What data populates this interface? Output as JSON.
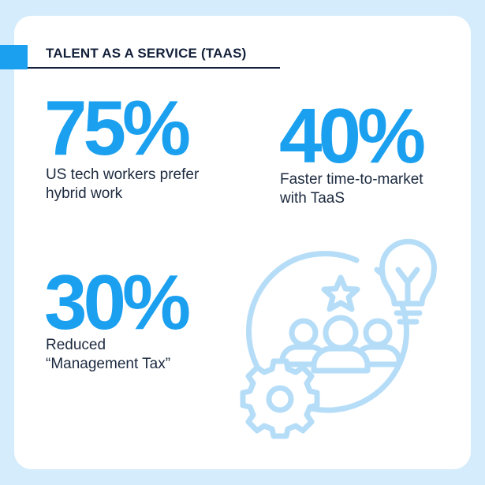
{
  "header": {
    "title": "TALENT AS A SERVICE (TAAS)"
  },
  "stats": [
    {
      "value": "75%",
      "label": [
        "US tech workers prefer",
        "hybrid work"
      ]
    },
    {
      "value": "40%",
      "label": [
        "Faster time-to-market",
        "with TaaS"
      ]
    },
    {
      "value": "30%",
      "label": [
        "Reduced",
        "“Management Tax”"
      ]
    }
  ]
}
